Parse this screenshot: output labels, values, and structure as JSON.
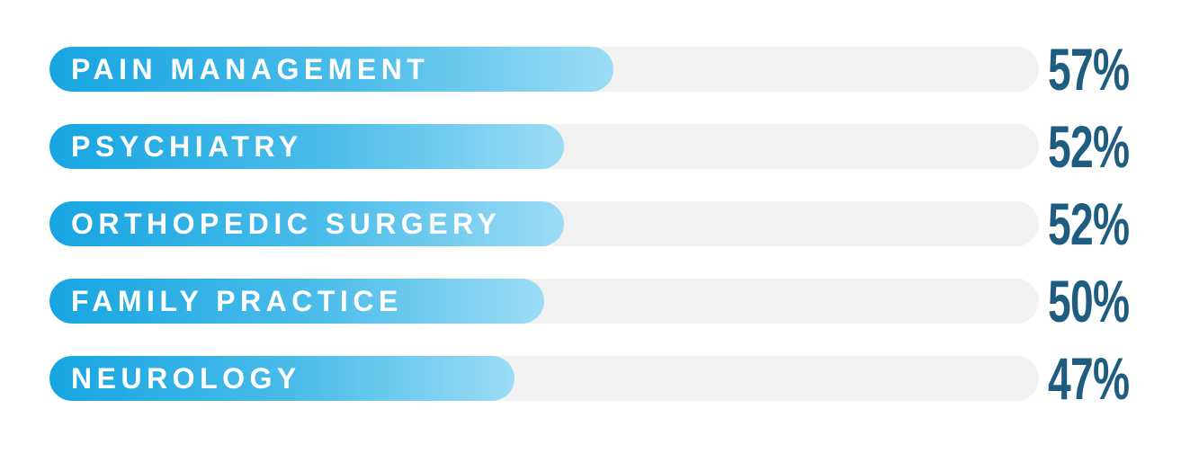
{
  "chart_data": {
    "type": "bar",
    "orientation": "horizontal",
    "title": "",
    "xlabel": "",
    "ylabel": "",
    "xlim": [
      0,
      100
    ],
    "unit": "%",
    "grid": false,
    "legend": false,
    "categories": [
      "PAIN MANAGEMENT",
      "PSYCHIATRY",
      "ORTHOPEDIC SURGERY",
      "FAMILY PRACTICE",
      "NEUROLOGY"
    ],
    "values": [
      57,
      52,
      52,
      50,
      47
    ],
    "value_labels": [
      "57%",
      "52%",
      "52%",
      "50%",
      "47%"
    ],
    "colors": {
      "bar_gradient_start": "#16a5e1",
      "bar_gradient_end": "#9cdcf5",
      "track": "#f2f2f3",
      "bar_label_text": "#ffffff",
      "value_text": "#1e5c80",
      "background": "#ffffff"
    }
  }
}
